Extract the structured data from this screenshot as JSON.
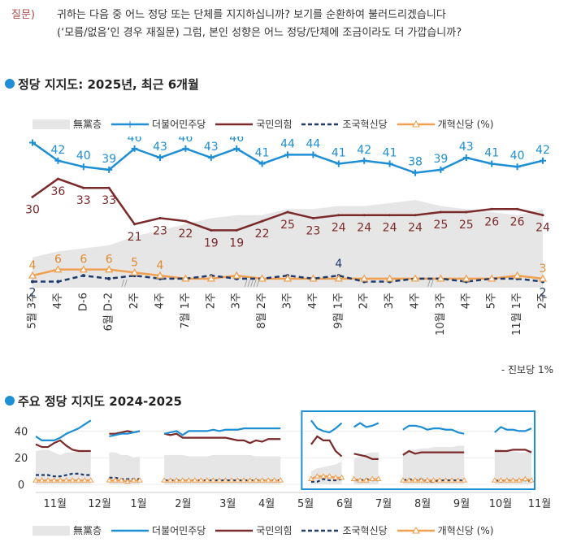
{
  "question": {
    "tag": "질문)",
    "line1": "귀하는 다음 중 어느 정당 또는 단체를 지지하십니까? 보기를 순환하여 불러드리겠습니다",
    "line2": "(‘모름/없음’인 경우 재질문) 그럼, 본인 성향은 어느 정당/단체에 조금이라도 더 가깝습니까?"
  },
  "colors": {
    "dp": "#1e8fd5",
    "ppp": "#7b2a2a",
    "cp": "#1f3a6b",
    "rp": "#f0a050",
    "none": "#e6e6e6"
  },
  "chart_data": [
    {
      "type": "line",
      "title": "정당 지지도: 2025년, 최근 6개월",
      "legend": [
        "無黨층",
        "더불어민주당",
        "국민의힘",
        "조국혁신당",
        "개혁신당 (%)"
      ],
      "categories": [
        "5월 3주",
        "4주",
        "D-6",
        "6월 D-2",
        "2주",
        "4주",
        "7월 1주",
        "2주",
        "3주",
        "8월 2주",
        "3주",
        "4주",
        "9월 1주",
        "2주",
        "3주",
        "4주",
        "10월 3주",
        "4주",
        "5주",
        "11월 1주",
        "2주"
      ],
      "series": [
        {
          "name": "더불어민주당",
          "values": [
            48,
            42,
            40,
            39,
            46,
            43,
            46,
            43,
            46,
            41,
            44,
            44,
            41,
            42,
            41,
            38,
            39,
            43,
            41,
            40,
            42
          ]
        },
        {
          "name": "국민의힘",
          "values": [
            30,
            36,
            33,
            33,
            21,
            23,
            22,
            19,
            19,
            22,
            25,
            23,
            24,
            24,
            24,
            24,
            25,
            25,
            26,
            26,
            24
          ]
        },
        {
          "name": "조국혁신당",
          "values": [
            2,
            2,
            4,
            3,
            4,
            3,
            3,
            4,
            3,
            3,
            4,
            3,
            4,
            2,
            2,
            3,
            3,
            2,
            3,
            3,
            2
          ]
        },
        {
          "name": "개혁신당",
          "values": [
            4,
            6,
            6,
            6,
            5,
            4,
            3,
            3,
            4,
            3,
            3,
            3,
            3,
            3,
            3,
            3,
            3,
            3,
            3,
            4,
            3
          ]
        },
        {
          "name": "無黨층",
          "values": [
            10,
            12,
            13,
            14,
            17,
            19,
            21,
            23,
            24,
            24,
            26,
            26,
            27,
            27,
            28,
            29,
            27,
            26,
            25,
            24,
            26
          ]
        }
      ],
      "point_labels": {
        "dp": [
          "48",
          "42",
          "40",
          "39",
          "46",
          "43",
          "46",
          "43",
          "46",
          "41",
          "44",
          "44",
          "41",
          "42",
          "41",
          "38",
          "39",
          "43",
          "41",
          "40",
          "42"
        ],
        "ppp": [
          "30",
          "36",
          "33",
          "33",
          "21",
          "23",
          "22",
          "19",
          "19",
          "22",
          "25",
          "23",
          "24",
          "24",
          "24",
          "24",
          "25",
          "25",
          "26",
          "26",
          "24"
        ],
        "rp": [
          {
            "i": 0,
            "t": "4"
          },
          {
            "i": 1,
            "t": "6"
          },
          {
            "i": 2,
            "t": "6"
          },
          {
            "i": 3,
            "t": "6"
          },
          {
            "i": 4,
            "t": "5"
          },
          {
            "i": 5,
            "t": "4"
          },
          {
            "i": 20,
            "t": "3"
          }
        ],
        "cp": [
          {
            "i": 0,
            "t": "2"
          },
          {
            "i": 12,
            "t": "4"
          },
          {
            "i": 20,
            "t": "2"
          }
        ]
      },
      "ylim": [
        0,
        50
      ],
      "note": "- 진보당 1%"
    },
    {
      "type": "line",
      "title": "주요 정당 지지도 2024-2025",
      "legend": [
        "無黨층",
        "더불어민주당",
        "국민의힘",
        "조국혁신당",
        "개혁신당 (%)"
      ],
      "y_ticks": [
        "40",
        "20",
        "0"
      ],
      "month_labels": [
        "11월",
        "12월",
        "1월",
        "2월",
        "3월",
        "4월",
        "5월",
        "6월",
        "7월",
        "8월",
        "9월",
        "10월",
        "11월"
      ],
      "ylim": [
        0,
        50
      ],
      "segments": [
        {
          "x": [
            0,
            1,
            2,
            3,
            4,
            5,
            6,
            7,
            8,
            9
          ],
          "dp": [
            36,
            33,
            33,
            33,
            35,
            38,
            40,
            42,
            45,
            48
          ],
          "ppp": [
            30,
            28,
            28,
            31,
            33,
            29,
            26,
            25,
            25,
            25
          ],
          "cp": [
            7,
            7,
            7,
            6,
            6,
            7,
            8,
            8,
            7,
            7
          ],
          "rp": [
            3,
            3,
            3,
            3,
            3,
            3,
            3,
            3,
            3,
            3
          ],
          "none": [
            25,
            26,
            26,
            24,
            22,
            24,
            24,
            26,
            24,
            24
          ]
        },
        {
          "x": [
            12,
            13,
            14,
            15,
            16,
            17
          ],
          "dp": [
            36,
            37,
            38,
            38,
            39,
            40
          ],
          "ppp": [
            38,
            38,
            39,
            40,
            39,
            40
          ],
          "cp": [
            5,
            5,
            4,
            4,
            4,
            4
          ],
          "rp": [
            3,
            3,
            3,
            2,
            3,
            3
          ],
          "none": [
            24,
            24,
            22,
            22,
            20,
            21
          ]
        },
        {
          "x": [
            21,
            22,
            23,
            24,
            25,
            26,
            27,
            28,
            29,
            30,
            31,
            32,
            33,
            34,
            35,
            36,
            37,
            38,
            39,
            40
          ],
          "dp": [
            38,
            39,
            40,
            37,
            40,
            40,
            40,
            40,
            41,
            40,
            41,
            41,
            41,
            42,
            42,
            42,
            42,
            42,
            42,
            42
          ],
          "ppp": [
            38,
            37,
            38,
            35,
            35,
            35,
            35,
            35,
            35,
            35,
            35,
            34,
            33,
            33,
            31,
            33,
            32,
            34,
            34,
            34
          ],
          "cp": [
            3,
            3,
            3,
            3,
            3,
            3,
            3,
            3,
            3,
            3,
            3,
            3,
            3,
            3,
            3,
            3,
            3,
            3,
            3,
            3
          ],
          "rp": [
            3,
            3,
            3,
            3,
            3,
            3,
            3,
            3,
            3,
            3,
            3,
            3,
            3,
            3,
            3,
            3,
            3,
            3,
            3,
            3
          ],
          "none": [
            22,
            22,
            22,
            22,
            21,
            21,
            21,
            21,
            22,
            22,
            22,
            22,
            22,
            22,
            22,
            21,
            21,
            21,
            21,
            21
          ]
        },
        {
          "x": [
            45,
            46,
            47,
            48,
            49,
            50
          ],
          "dp": [
            48,
            42,
            40,
            39,
            42,
            46
          ],
          "ppp": [
            30,
            36,
            33,
            33,
            25,
            21
          ],
          "cp": [
            2,
            2,
            4,
            3,
            3,
            4
          ],
          "rp": [
            4,
            6,
            6,
            6,
            5,
            5
          ],
          "none": [
            10,
            12,
            13,
            14,
            15,
            17
          ]
        },
        {
          "x": [
            52,
            53,
            54,
            55,
            56
          ],
          "dp": [
            43,
            46,
            43,
            44,
            46
          ],
          "ppp": [
            23,
            22,
            21,
            19,
            19
          ],
          "cp": [
            3,
            3,
            4,
            3,
            3
          ],
          "rp": [
            4,
            3,
            3,
            4,
            4
          ],
          "none": [
            19,
            21,
            23,
            24,
            24
          ]
        },
        {
          "x": [
            60,
            61,
            62,
            63,
            64,
            65,
            66,
            67,
            68,
            69,
            70
          ],
          "dp": [
            41,
            44,
            44,
            43,
            41,
            42,
            42,
            41,
            41,
            39,
            38
          ],
          "ppp": [
            22,
            25,
            23,
            24,
            24,
            24,
            24,
            24,
            24,
            24,
            24
          ],
          "cp": [
            3,
            4,
            3,
            4,
            2,
            2,
            3,
            3,
            3,
            3,
            3
          ],
          "rp": [
            3,
            3,
            3,
            3,
            3,
            3,
            3,
            3,
            3,
            3,
            3
          ],
          "none": [
            24,
            26,
            26,
            27,
            27,
            28,
            28,
            28,
            28,
            29,
            29
          ]
        },
        {
          "x": [
            75,
            76,
            77,
            78,
            79,
            80,
            81
          ],
          "dp": [
            39,
            43,
            41,
            41,
            40,
            40,
            42
          ],
          "ppp": [
            25,
            25,
            25,
            26,
            26,
            26,
            24
          ],
          "cp": [
            3,
            2,
            3,
            3,
            3,
            3,
            2
          ],
          "rp": [
            3,
            3,
            3,
            3,
            3,
            4,
            3
          ],
          "none": [
            27,
            26,
            25,
            25,
            24,
            24,
            26
          ]
        }
      ]
    }
  ]
}
